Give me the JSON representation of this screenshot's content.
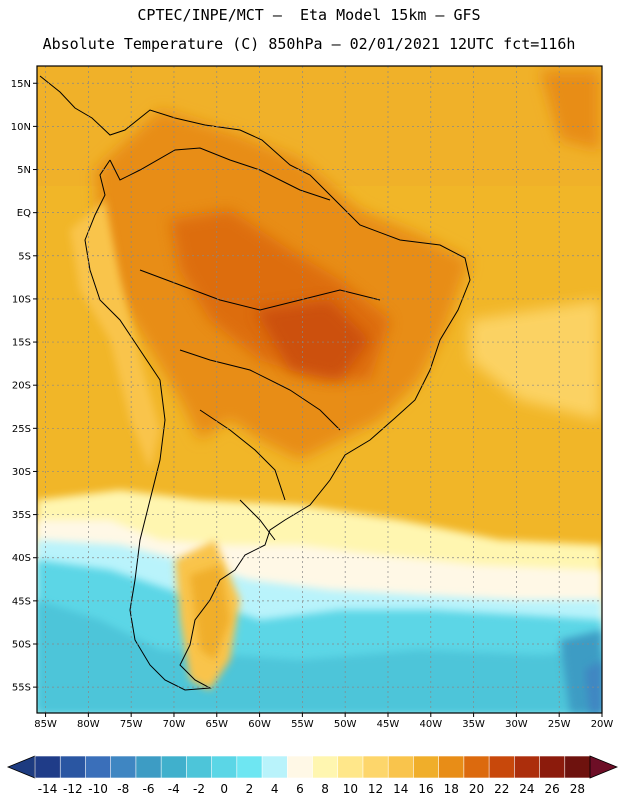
{
  "header": {
    "line1": "CPTEC/INPE/MCT –  Eta Model 15km – GFS",
    "line2": "Absolute Temperature (C) 850hPa – 02/01/2021 12UTC fct=116h"
  },
  "map": {
    "region": "South America",
    "lon_range": [
      -86,
      -20
    ],
    "lat_range": [
      -58,
      17
    ],
    "lat_ticks": [
      {
        "value": 15,
        "label": "15N"
      },
      {
        "value": 10,
        "label": "10N"
      },
      {
        "value": 5,
        "label": "5N"
      },
      {
        "value": 0,
        "label": "EQ"
      },
      {
        "value": -5,
        "label": "5S"
      },
      {
        "value": -10,
        "label": "10S"
      },
      {
        "value": -15,
        "label": "15S"
      },
      {
        "value": -20,
        "label": "20S"
      },
      {
        "value": -25,
        "label": "25S"
      },
      {
        "value": -30,
        "label": "30S"
      },
      {
        "value": -35,
        "label": "35S"
      },
      {
        "value": -40,
        "label": "40S"
      },
      {
        "value": -45,
        "label": "45S"
      },
      {
        "value": -50,
        "label": "50S"
      },
      {
        "value": -55,
        "label": "55S"
      }
    ],
    "lon_ticks": [
      {
        "value": -85,
        "label": "85W"
      },
      {
        "value": -80,
        "label": "80W"
      },
      {
        "value": -75,
        "label": "75W"
      },
      {
        "value": -70,
        "label": "70W"
      },
      {
        "value": -65,
        "label": "65W"
      },
      {
        "value": -60,
        "label": "60W"
      },
      {
        "value": -55,
        "label": "55W"
      },
      {
        "value": -50,
        "label": "50W"
      },
      {
        "value": -45,
        "label": "45W"
      },
      {
        "value": -40,
        "label": "40W"
      },
      {
        "value": -35,
        "label": "35W"
      },
      {
        "value": -30,
        "label": "30W"
      },
      {
        "value": -25,
        "label": "25W"
      },
      {
        "value": -20,
        "label": "20W"
      }
    ]
  },
  "colorbar": {
    "labels": [
      "-14",
      "-12",
      "-10",
      "-8",
      "-6",
      "-4",
      "-2",
      "0",
      "2",
      "4",
      "6",
      "8",
      "10",
      "12",
      "14",
      "16",
      "18",
      "20",
      "22",
      "24",
      "26",
      "28"
    ],
    "colors": [
      "#1f3c88",
      "#2a56a2",
      "#3a6fba",
      "#3f86c2",
      "#3d9cc4",
      "#40b0cc",
      "#4dc5d9",
      "#5bd6e6",
      "#6ee6f2",
      "#b9f3fb",
      "#fff8e6",
      "#fff6b0",
      "#ffe78a",
      "#fdd66b",
      "#f9c44c",
      "#f0ae2a",
      "#e88d17",
      "#dc6a0e",
      "#c8480b",
      "#ac2e0c",
      "#8c1b0c",
      "#6e120e"
    ],
    "low_arrow_color": "#1d3b80",
    "high_arrow_color": "#6d0e26"
  }
}
